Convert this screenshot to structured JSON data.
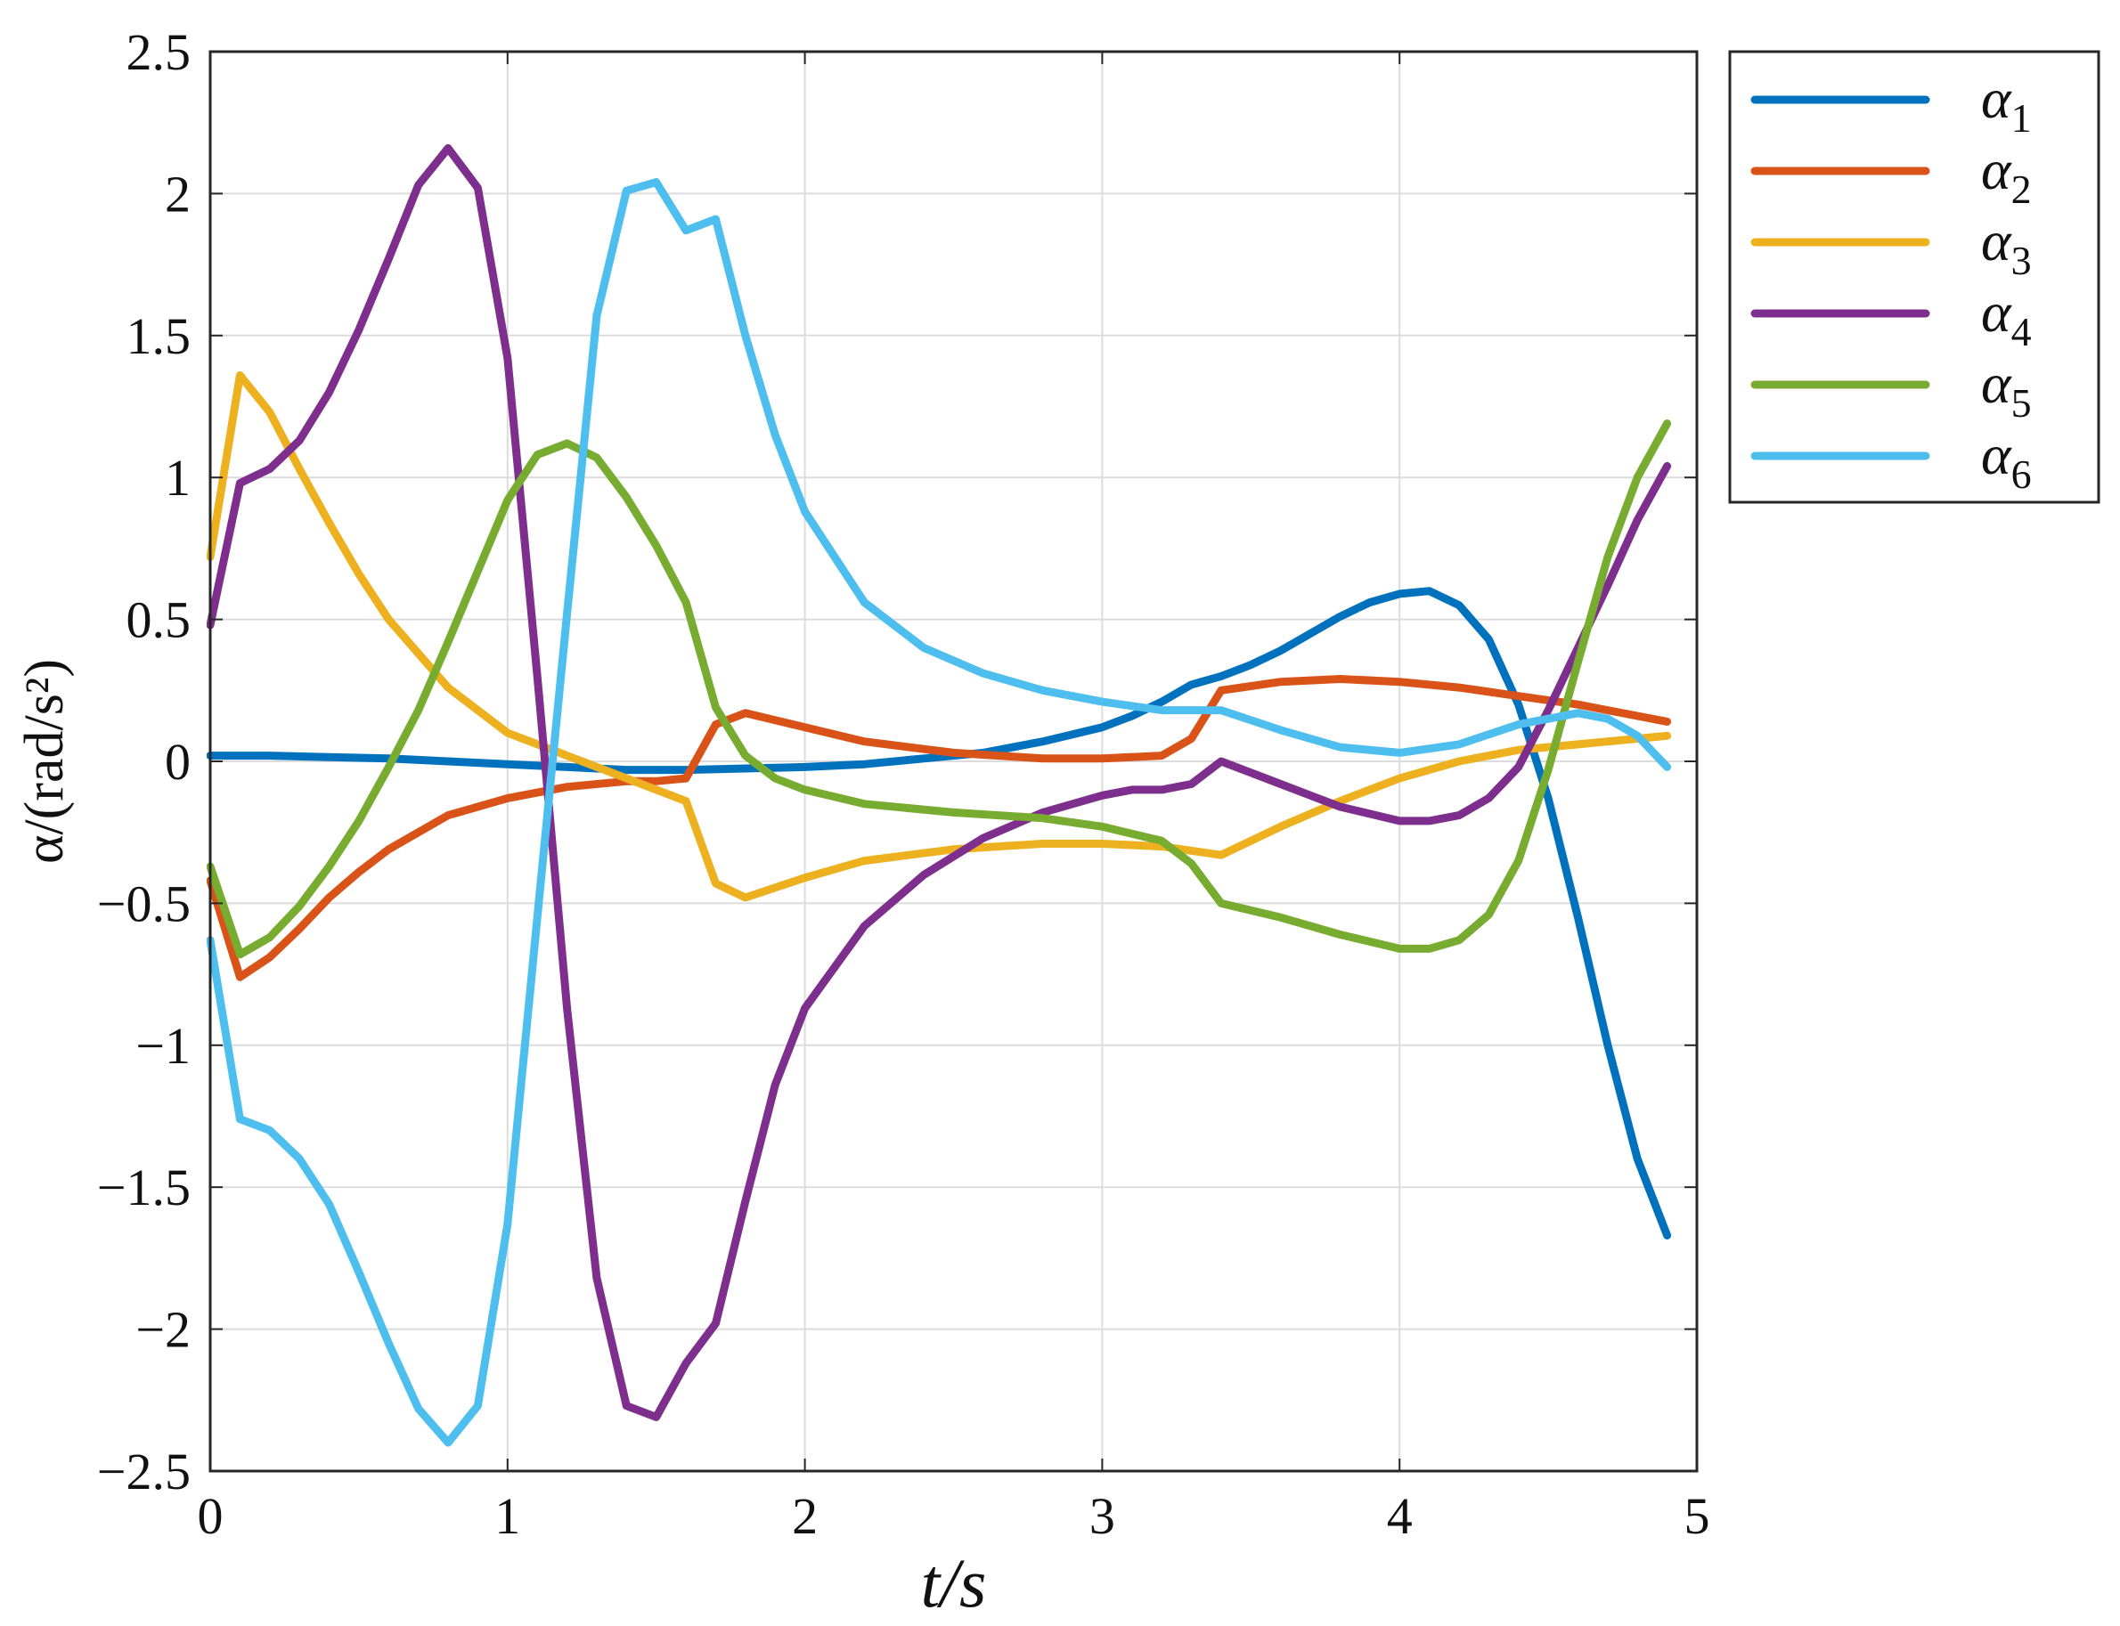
{
  "chart_data": {
    "type": "line",
    "xlabel": "t/s",
    "ylabel": "α/(rad/s²)",
    "xlim": [
      0,
      5
    ],
    "ylim": [
      -2.5,
      2.5
    ],
    "xticks": [
      0,
      1,
      2,
      3,
      4,
      5
    ],
    "yticks": [
      2.5,
      2,
      1.5,
      1,
      0.5,
      0,
      -0.5,
      -1,
      -1.5,
      -2,
      -2.5
    ],
    "xtick_labels": [
      "0",
      "1",
      "2",
      "3",
      "4",
      "5"
    ],
    "ytick_labels": [
      "2.5",
      "2",
      "1.5",
      "1",
      "0.5",
      "0",
      "−0.5",
      "−1",
      "−1.5",
      "−2",
      "−2.5"
    ],
    "grid": true,
    "legend_position": "outside-top-right",
    "series": [
      {
        "name": "α1",
        "legend_base": "α",
        "legend_sub": "1",
        "color": "#0072BD",
        "x": [
          0,
          0.2,
          0.4,
          0.6,
          0.8,
          1.0,
          1.2,
          1.4,
          1.6,
          1.8,
          2.0,
          2.2,
          2.4,
          2.6,
          2.8,
          3.0,
          3.1,
          3.2,
          3.3,
          3.4,
          3.5,
          3.6,
          3.7,
          3.8,
          3.9,
          4.0,
          4.1,
          4.2,
          4.3,
          4.4,
          4.5,
          4.6,
          4.7,
          4.8,
          4.9
        ],
        "y": [
          0.02,
          0.02,
          0.015,
          0.01,
          0.0,
          -0.01,
          -0.02,
          -0.03,
          -0.03,
          -0.025,
          -0.02,
          -0.01,
          0.01,
          0.03,
          0.07,
          0.12,
          0.16,
          0.21,
          0.27,
          0.3,
          0.34,
          0.39,
          0.45,
          0.51,
          0.56,
          0.59,
          0.6,
          0.55,
          0.43,
          0.2,
          -0.13,
          -0.55,
          -1.0,
          -1.4,
          -1.67
        ]
      },
      {
        "name": "α2",
        "legend_base": "α",
        "legend_sub": "2",
        "color": "#D95319",
        "x": [
          0,
          0.1,
          0.2,
          0.3,
          0.4,
          0.5,
          0.6,
          0.8,
          1.0,
          1.2,
          1.4,
          1.5,
          1.6,
          1.7,
          1.8,
          2.0,
          2.2,
          2.5,
          2.8,
          3.0,
          3.2,
          3.3,
          3.4,
          3.6,
          3.8,
          4.0,
          4.2,
          4.4,
          4.6,
          4.8,
          4.9
        ],
        "y": [
          -0.42,
          -0.76,
          -0.69,
          -0.59,
          -0.48,
          -0.39,
          -0.31,
          -0.19,
          -0.13,
          -0.09,
          -0.07,
          -0.07,
          -0.06,
          0.13,
          0.17,
          0.12,
          0.07,
          0.03,
          0.01,
          0.01,
          0.02,
          0.08,
          0.25,
          0.28,
          0.29,
          0.28,
          0.26,
          0.23,
          0.2,
          0.16,
          0.14
        ]
      },
      {
        "name": "α3",
        "legend_base": "α",
        "legend_sub": "3",
        "color": "#EDB120",
        "x": [
          0,
          0.1,
          0.2,
          0.3,
          0.4,
          0.5,
          0.6,
          0.8,
          1.0,
          1.2,
          1.4,
          1.6,
          1.7,
          1.8,
          2.0,
          2.2,
          2.5,
          2.8,
          3.0,
          3.2,
          3.4,
          3.6,
          3.8,
          4.0,
          4.2,
          4.4,
          4.6,
          4.8,
          4.9
        ],
        "y": [
          0.72,
          1.36,
          1.23,
          1.03,
          0.84,
          0.66,
          0.5,
          0.26,
          0.1,
          0.02,
          -0.06,
          -0.14,
          -0.43,
          -0.48,
          -0.41,
          -0.35,
          -0.31,
          -0.29,
          -0.29,
          -0.3,
          -0.33,
          -0.23,
          -0.14,
          -0.06,
          0.0,
          0.04,
          0.06,
          0.08,
          0.09
        ]
      },
      {
        "name": "α4",
        "legend_base": "α",
        "legend_sub": "4",
        "color": "#7E2F8E",
        "x": [
          0,
          0.1,
          0.2,
          0.3,
          0.4,
          0.5,
          0.6,
          0.7,
          0.8,
          0.9,
          1.0,
          1.1,
          1.2,
          1.3,
          1.4,
          1.5,
          1.6,
          1.7,
          1.8,
          1.9,
          2.0,
          2.2,
          2.4,
          2.6,
          2.8,
          3.0,
          3.1,
          3.2,
          3.3,
          3.4,
          3.6,
          3.8,
          4.0,
          4.1,
          4.2,
          4.3,
          4.4,
          4.5,
          4.6,
          4.7,
          4.8,
          4.9
        ],
        "y": [
          0.48,
          0.98,
          1.03,
          1.13,
          1.3,
          1.52,
          1.77,
          2.03,
          2.16,
          2.02,
          1.42,
          0.3,
          -0.87,
          -1.82,
          -2.27,
          -2.31,
          -2.12,
          -1.98,
          -1.55,
          -1.14,
          -0.87,
          -0.58,
          -0.4,
          -0.27,
          -0.18,
          -0.12,
          -0.1,
          -0.1,
          -0.08,
          0.0,
          -0.08,
          -0.16,
          -0.21,
          -0.21,
          -0.19,
          -0.13,
          -0.02,
          0.18,
          0.4,
          0.62,
          0.85,
          1.04
        ]
      },
      {
        "name": "α5",
        "legend_base": "α",
        "legend_sub": "5",
        "color": "#77AC30",
        "x": [
          0,
          0.1,
          0.2,
          0.3,
          0.4,
          0.5,
          0.6,
          0.7,
          0.8,
          0.9,
          1.0,
          1.1,
          1.2,
          1.3,
          1.4,
          1.5,
          1.6,
          1.7,
          1.8,
          1.9,
          2.0,
          2.2,
          2.5,
          2.8,
          3.0,
          3.2,
          3.3,
          3.4,
          3.6,
          3.8,
          4.0,
          4.1,
          4.2,
          4.3,
          4.4,
          4.5,
          4.6,
          4.7,
          4.8,
          4.9
        ],
        "y": [
          -0.37,
          -0.68,
          -0.62,
          -0.51,
          -0.37,
          -0.21,
          -0.02,
          0.18,
          0.42,
          0.67,
          0.92,
          1.08,
          1.12,
          1.07,
          0.93,
          0.76,
          0.56,
          0.19,
          0.02,
          -0.06,
          -0.1,
          -0.15,
          -0.18,
          -0.2,
          -0.23,
          -0.28,
          -0.36,
          -0.5,
          -0.55,
          -0.61,
          -0.66,
          -0.66,
          -0.63,
          -0.54,
          -0.35,
          -0.03,
          0.35,
          0.72,
          1.0,
          1.19
        ]
      },
      {
        "name": "α6",
        "legend_base": "α",
        "legend_sub": "6",
        "color": "#4DBEEE",
        "x": [
          0,
          0.1,
          0.2,
          0.3,
          0.4,
          0.5,
          0.6,
          0.7,
          0.8,
          0.9,
          1.0,
          1.1,
          1.2,
          1.3,
          1.4,
          1.5,
          1.6,
          1.7,
          1.8,
          1.9,
          2.0,
          2.2,
          2.4,
          2.6,
          2.8,
          3.0,
          3.2,
          3.4,
          3.6,
          3.8,
          4.0,
          4.2,
          4.4,
          4.6,
          4.7,
          4.8,
          4.9
        ],
        "y": [
          -0.63,
          -1.26,
          -1.3,
          -1.4,
          -1.56,
          -1.8,
          -2.05,
          -2.28,
          -2.4,
          -2.27,
          -1.63,
          -0.55,
          0.52,
          1.57,
          2.01,
          2.04,
          1.87,
          1.91,
          1.5,
          1.15,
          0.88,
          0.56,
          0.4,
          0.31,
          0.25,
          0.21,
          0.18,
          0.18,
          0.11,
          0.05,
          0.03,
          0.06,
          0.13,
          0.17,
          0.15,
          0.09,
          -0.02
        ]
      }
    ]
  }
}
